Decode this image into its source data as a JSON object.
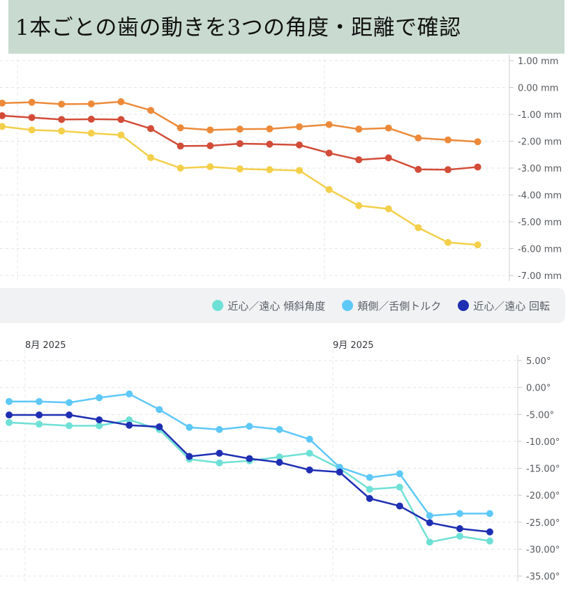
{
  "title": "1本ごとの歯の動きを3つの角度・距離で確認",
  "chart_data": [
    {
      "type": "line",
      "y_unit": "mm",
      "ylim": [
        -7,
        1
      ],
      "y_ticks": [
        1,
        0,
        -1,
        -2,
        -3,
        -4,
        -5,
        -6,
        -7
      ],
      "y_tick_labels": [
        "1.00 mm",
        "0.00 mm",
        "-1.00 mm",
        "-2.00 mm",
        "-3.00 mm",
        "-4.00 mm",
        "-5.00 mm",
        "-6.00 mm",
        "-7.00 mm"
      ],
      "grid": true,
      "series": [
        {
          "color": "#ec8a3a",
          "values": [
            -0.58,
            -0.55,
            -0.62,
            -0.61,
            -0.53,
            -0.85,
            -1.5,
            -1.58,
            -1.55,
            -1.54,
            -1.46,
            -1.38,
            -1.55,
            -1.51,
            -1.88,
            -1.95,
            -2.02
          ]
        },
        {
          "color": "#d24c38",
          "values": [
            -1.05,
            -1.12,
            -1.19,
            -1.18,
            -1.19,
            -1.53,
            -2.18,
            -2.17,
            -2.09,
            -2.11,
            -2.14,
            -2.44,
            -2.69,
            -2.62,
            -3.05,
            -3.06,
            -2.96
          ]
        },
        {
          "color": "#f3cf4a",
          "values": [
            -1.45,
            -1.58,
            -1.62,
            -1.7,
            -1.77,
            -2.61,
            -3.0,
            -2.95,
            -3.03,
            -3.06,
            -3.09,
            -3.8,
            -4.4,
            -4.52,
            -5.22,
            -5.77,
            -5.86
          ]
        }
      ]
    },
    {
      "type": "line",
      "y_unit": "°",
      "ylim": [
        -35,
        5
      ],
      "y_ticks": [
        5,
        0,
        -5,
        -10,
        -15,
        -20,
        -25,
        -30,
        -35
      ],
      "y_tick_labels": [
        "5.00°",
        "0.00°",
        "-5.00°",
        "-10.00°",
        "-15.00°",
        "-20.00°",
        "-25.00°",
        "-30.00°",
        "-35.00°"
      ],
      "x_tick_labels": [
        "8月 2025",
        "9月 2025"
      ],
      "grid": true,
      "legend_position": "top-right",
      "legend": [
        {
          "label": "近心／遠心 傾斜角度",
          "color": "#6fe0d6"
        },
        {
          "label": "頬側／舌側トルク",
          "color": "#5ec8f7"
        },
        {
          "label": "近心／遠心 回転",
          "color": "#1f2fb3"
        }
      ],
      "series": [
        {
          "name": "近心／遠心 傾斜角度",
          "color": "#6fe0d6",
          "values": [
            -6.5,
            -6.8,
            -7.1,
            -7.1,
            -6.0,
            -7.8,
            -13.3,
            -14.0,
            -13.6,
            -12.9,
            -12.2,
            -15.0,
            -18.9,
            -18.5,
            -28.7,
            -27.6,
            -28.5
          ]
        },
        {
          "name": "頬側／舌側トルク",
          "color": "#5ec8f7",
          "values": [
            -2.6,
            -2.6,
            -2.8,
            -1.9,
            -1.2,
            -4.1,
            -7.4,
            -7.8,
            -7.2,
            -7.8,
            -9.6,
            -14.8,
            -16.7,
            -16.0,
            -23.8,
            -23.4,
            -23.4
          ]
        },
        {
          "name": "近心／遠心 回転",
          "color": "#1f2fb3",
          "values": [
            -5.1,
            -5.1,
            -5.1,
            -6.0,
            -7.0,
            -7.3,
            -12.8,
            -12.2,
            -13.2,
            -13.9,
            -15.3,
            -15.7,
            -20.6,
            -22.0,
            -25.1,
            -26.2,
            -26.8
          ]
        }
      ]
    }
  ]
}
